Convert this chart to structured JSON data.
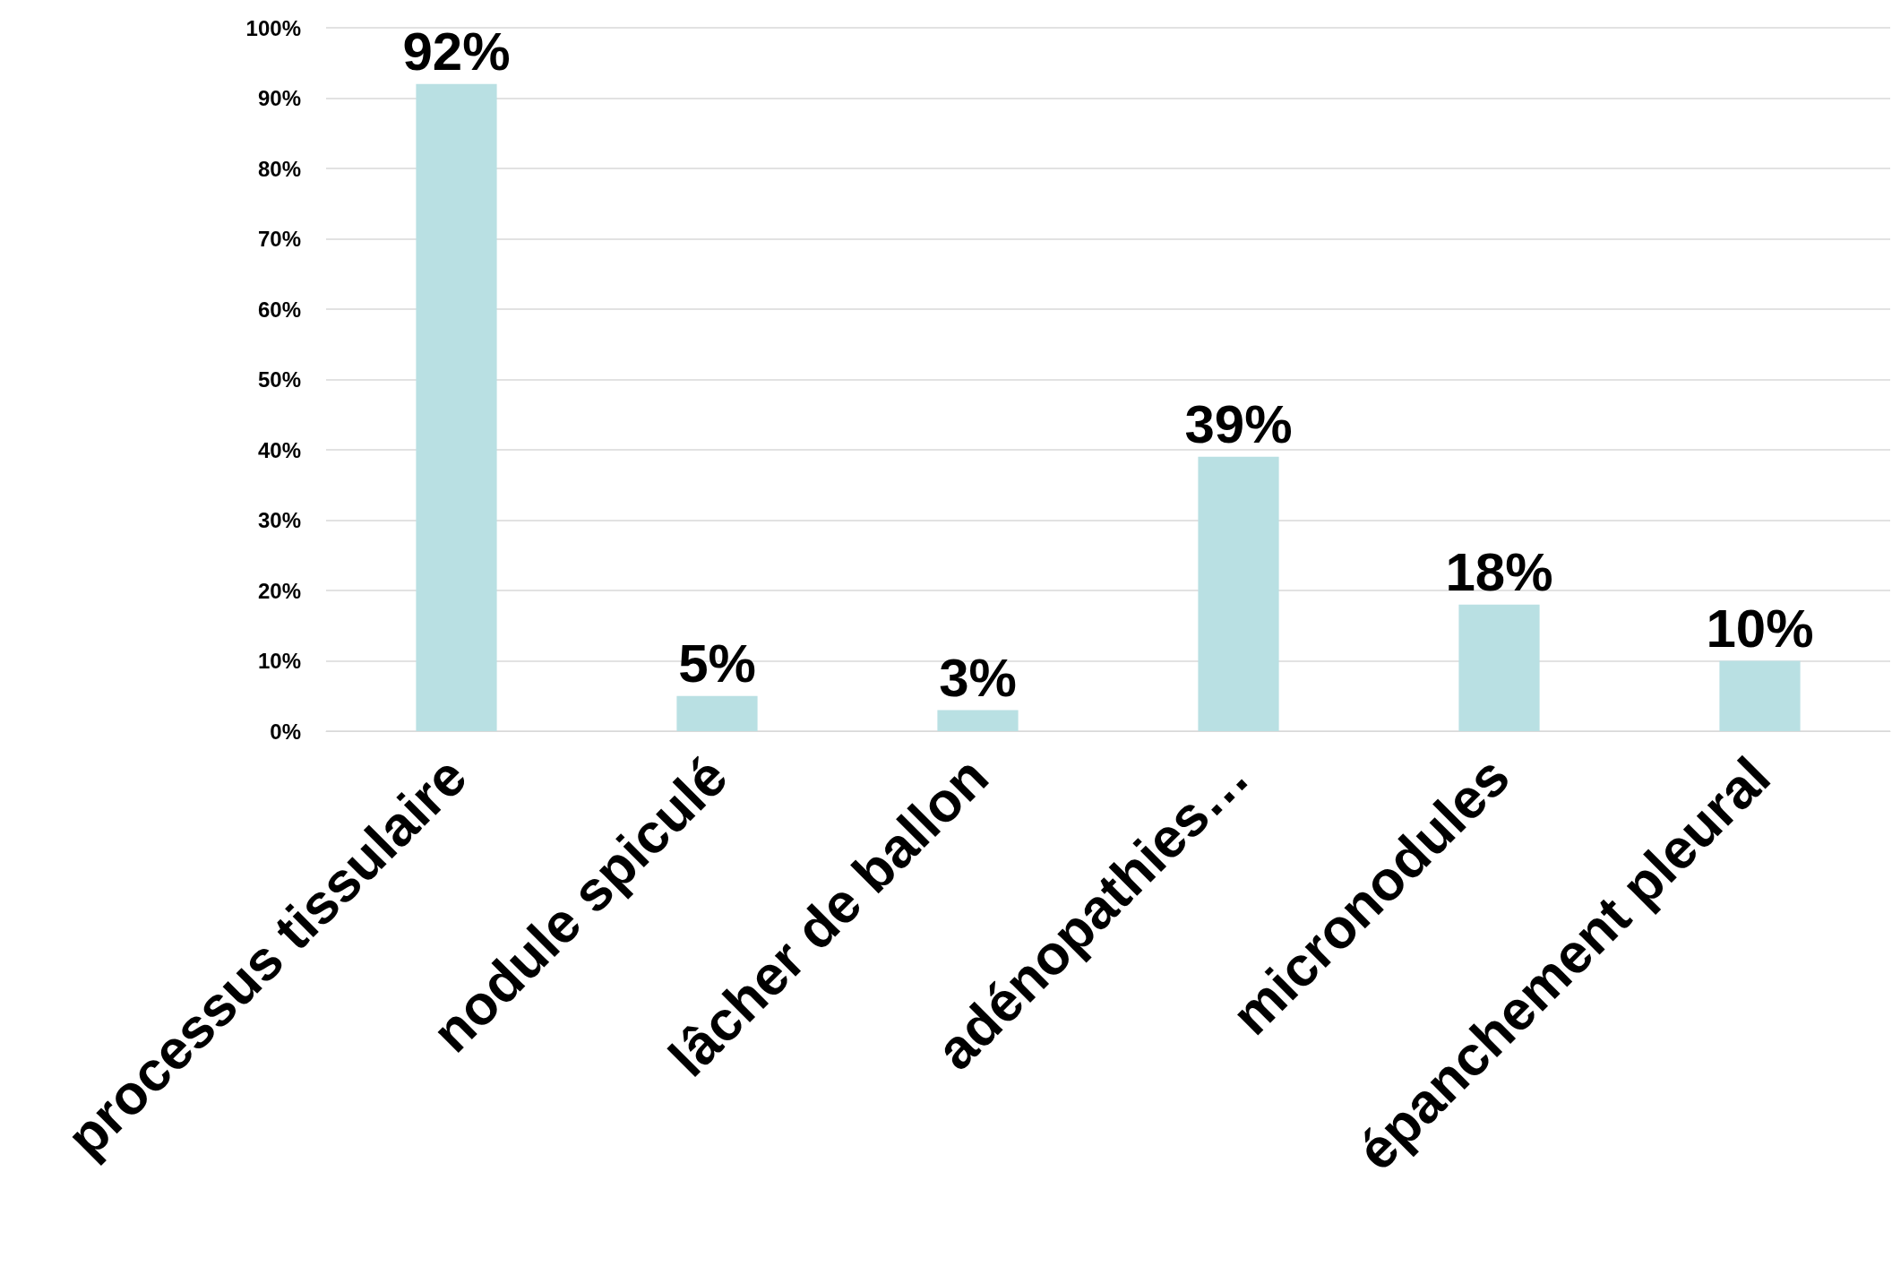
{
  "chart_data": {
    "type": "bar",
    "categories": [
      "processus tissulaire",
      "nodule spiculé",
      "lâcher de ballon",
      "adénopathies…",
      "micronodules",
      "épanchement pleural"
    ],
    "values": [
      92,
      5,
      3,
      39,
      18,
      10
    ],
    "value_labels": [
      "92%",
      "5%",
      "3%",
      "39%",
      "18%",
      "10%"
    ],
    "color": "#b9e0e3",
    "ylim": [
      0,
      100
    ],
    "yticks": [
      {
        "value": 0,
        "label": "0%"
      },
      {
        "value": 10,
        "label": "10%"
      },
      {
        "value": 20,
        "label": "20%"
      },
      {
        "value": 30,
        "label": "30%"
      },
      {
        "value": 40,
        "label": "40%"
      },
      {
        "value": 50,
        "label": "50%"
      },
      {
        "value": 60,
        "label": "60%"
      },
      {
        "value": 70,
        "label": "70%"
      },
      {
        "value": 80,
        "label": "80%"
      },
      {
        "value": 90,
        "label": "90%"
      },
      {
        "value": 100,
        "label": "100%"
      }
    ],
    "grid": "y"
  }
}
